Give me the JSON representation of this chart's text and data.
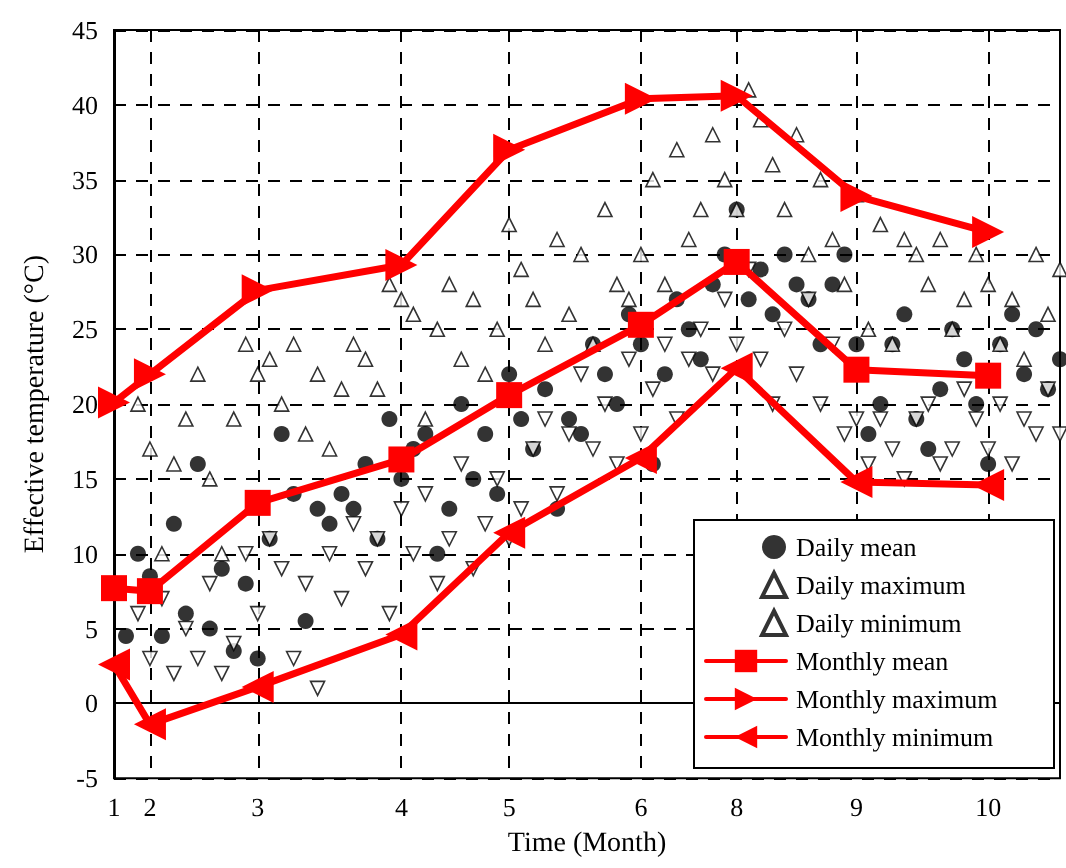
{
  "chart_data": {
    "type": "scatter",
    "xlabel": "Time (Month)",
    "ylabel": "Effective temperature (°C)",
    "categories": [
      "1",
      null,
      null,
      "2",
      null,
      null,
      null,
      null,
      null,
      null,
      null,
      null,
      "3",
      null,
      null,
      null,
      null,
      null,
      null,
      null,
      null,
      null,
      null,
      null,
      "4",
      null,
      null,
      null,
      null,
      null,
      null,
      null,
      null,
      "5",
      null,
      null,
      null,
      null,
      null,
      null,
      null,
      null,
      null,
      null,
      "6",
      null,
      null,
      null,
      null,
      null,
      null,
      null,
      "8",
      null,
      null,
      null,
      null,
      null,
      null,
      null,
      null,
      null,
      "9",
      null,
      null,
      null,
      null,
      null,
      null,
      null,
      null,
      null,
      null,
      "10",
      null,
      null,
      null,
      null,
      null,
      null
    ],
    "ylim": [
      -5,
      45
    ],
    "yticks": [
      -5,
      0,
      5,
      10,
      15,
      20,
      25,
      30,
      35,
      40,
      45
    ],
    "grid": true,
    "legend": "bottom right",
    "series": [
      {
        "name": "Daily mean",
        "marker": "circle",
        "color": "#000000",
        "values": [
          null,
          4.5,
          10,
          8.5,
          4.5,
          12,
          6,
          16,
          5,
          9,
          3.5,
          8,
          3,
          11,
          18,
          14,
          5.5,
          13,
          12,
          14,
          13,
          16,
          11,
          19,
          15,
          17,
          18,
          10,
          13,
          20,
          15,
          18,
          14,
          22,
          19,
          17,
          21,
          13,
          19,
          18,
          24,
          22,
          20,
          26,
          24,
          16,
          22,
          27,
          25,
          23,
          28,
          30,
          33,
          27,
          29,
          26,
          30,
          28,
          27,
          24,
          28,
          30,
          24,
          18,
          20,
          24,
          26,
          19,
          17,
          21,
          25,
          23,
          20,
          16,
          24,
          26,
          22,
          25,
          21,
          23
        ]
      },
      {
        "name": "Daily maximum",
        "marker": "triangle",
        "color": "#000000",
        "values": [
          null,
          null,
          20,
          17,
          10,
          16,
          19,
          22,
          15,
          10,
          19,
          24,
          22,
          23,
          20,
          24,
          18,
          22,
          17,
          21,
          24,
          23,
          21,
          28,
          27,
          26,
          19,
          25,
          28,
          23,
          27,
          22,
          25,
          32,
          29,
          27,
          24,
          31,
          26,
          30,
          24,
          33,
          28,
          27,
          30,
          35,
          28,
          37,
          31,
          33,
          38,
          35,
          33,
          41,
          39,
          36,
          33,
          38,
          30,
          35,
          31,
          28,
          34,
          25,
          32,
          24,
          31,
          30,
          28,
          31,
          25,
          27,
          30,
          28,
          24,
          27,
          23,
          30,
          26,
          29
        ]
      },
      {
        "name": "Daily minimum",
        "marker": "triangle",
        "color": "#000000",
        "values": [
          null,
          null,
          6,
          3,
          7,
          2,
          5,
          3,
          8,
          2,
          4,
          10,
          6,
          11,
          9,
          3,
          8,
          1,
          10,
          7,
          12,
          9,
          11,
          6,
          13,
          10,
          14,
          8,
          11,
          16,
          9,
          12,
          15,
          11,
          13,
          17,
          19,
          14,
          18,
          22,
          17,
          20,
          16,
          23,
          18,
          21,
          24,
          19,
          23,
          25,
          22,
          27,
          24,
          29,
          23,
          20,
          25,
          22,
          27,
          20,
          24,
          18,
          19,
          16,
          19,
          17,
          15,
          19,
          20,
          16,
          17,
          21,
          19,
          17,
          20,
          16,
          19,
          18,
          21,
          18
        ]
      },
      {
        "name": "Monthly mean",
        "type": "line",
        "marker": "square",
        "color": "#ff0000",
        "values": [
          7.7,
          null,
          null,
          7.5,
          null,
          null,
          null,
          null,
          null,
          null,
          null,
          null,
          13.4,
          null,
          null,
          null,
          null,
          null,
          null,
          null,
          null,
          null,
          null,
          null,
          16.3,
          null,
          null,
          null,
          null,
          null,
          null,
          null,
          null,
          20.6,
          null,
          null,
          null,
          null,
          null,
          null,
          null,
          null,
          null,
          null,
          25.3,
          null,
          null,
          null,
          null,
          null,
          null,
          null,
          29.5,
          null,
          null,
          null,
          null,
          null,
          null,
          null,
          null,
          null,
          22.3,
          null,
          null,
          null,
          null,
          null,
          null,
          null,
          null,
          null,
          null,
          21.9,
          null,
          null,
          null,
          null,
          null,
          null
        ]
      },
      {
        "name": "Monthly maximum",
        "type": "line",
        "marker": "triangle",
        "color": "#ff0000",
        "values": [
          20.1,
          null,
          null,
          22.0,
          null,
          null,
          null,
          null,
          null,
          null,
          null,
          null,
          27.6,
          null,
          null,
          null,
          null,
          null,
          null,
          null,
          null,
          null,
          null,
          null,
          29.3,
          null,
          null,
          null,
          null,
          null,
          null,
          null,
          null,
          37.0,
          null,
          null,
          null,
          null,
          null,
          null,
          null,
          null,
          null,
          null,
          40.4,
          null,
          null,
          null,
          null,
          null,
          null,
          null,
          40.6,
          null,
          null,
          null,
          null,
          null,
          null,
          null,
          null,
          null,
          33.9,
          null,
          null,
          null,
          null,
          null,
          null,
          null,
          null,
          null,
          null,
          31.5,
          null,
          null,
          null,
          null,
          null,
          null
        ]
      },
      {
        "name": "Monthly minimum",
        "type": "line",
        "marker": "triangle",
        "color": "#ff0000",
        "values": [
          2.6,
          null,
          null,
          -1.4,
          null,
          null,
          null,
          null,
          null,
          null,
          null,
          null,
          1.1,
          null,
          null,
          null,
          null,
          null,
          null,
          null,
          null,
          null,
          null,
          null,
          4.6,
          null,
          null,
          null,
          null,
          null,
          null,
          null,
          null,
          11.4,
          null,
          null,
          null,
          null,
          null,
          null,
          null,
          null,
          null,
          null,
          16.4,
          null,
          null,
          null,
          null,
          null,
          null,
          null,
          22.4,
          null,
          null,
          null,
          null,
          null,
          null,
          null,
          null,
          null,
          14.8,
          null,
          null,
          null,
          null,
          null,
          null,
          null,
          null,
          null,
          null,
          14.6,
          null,
          null,
          null,
          null,
          null,
          null
        ]
      }
    ]
  }
}
